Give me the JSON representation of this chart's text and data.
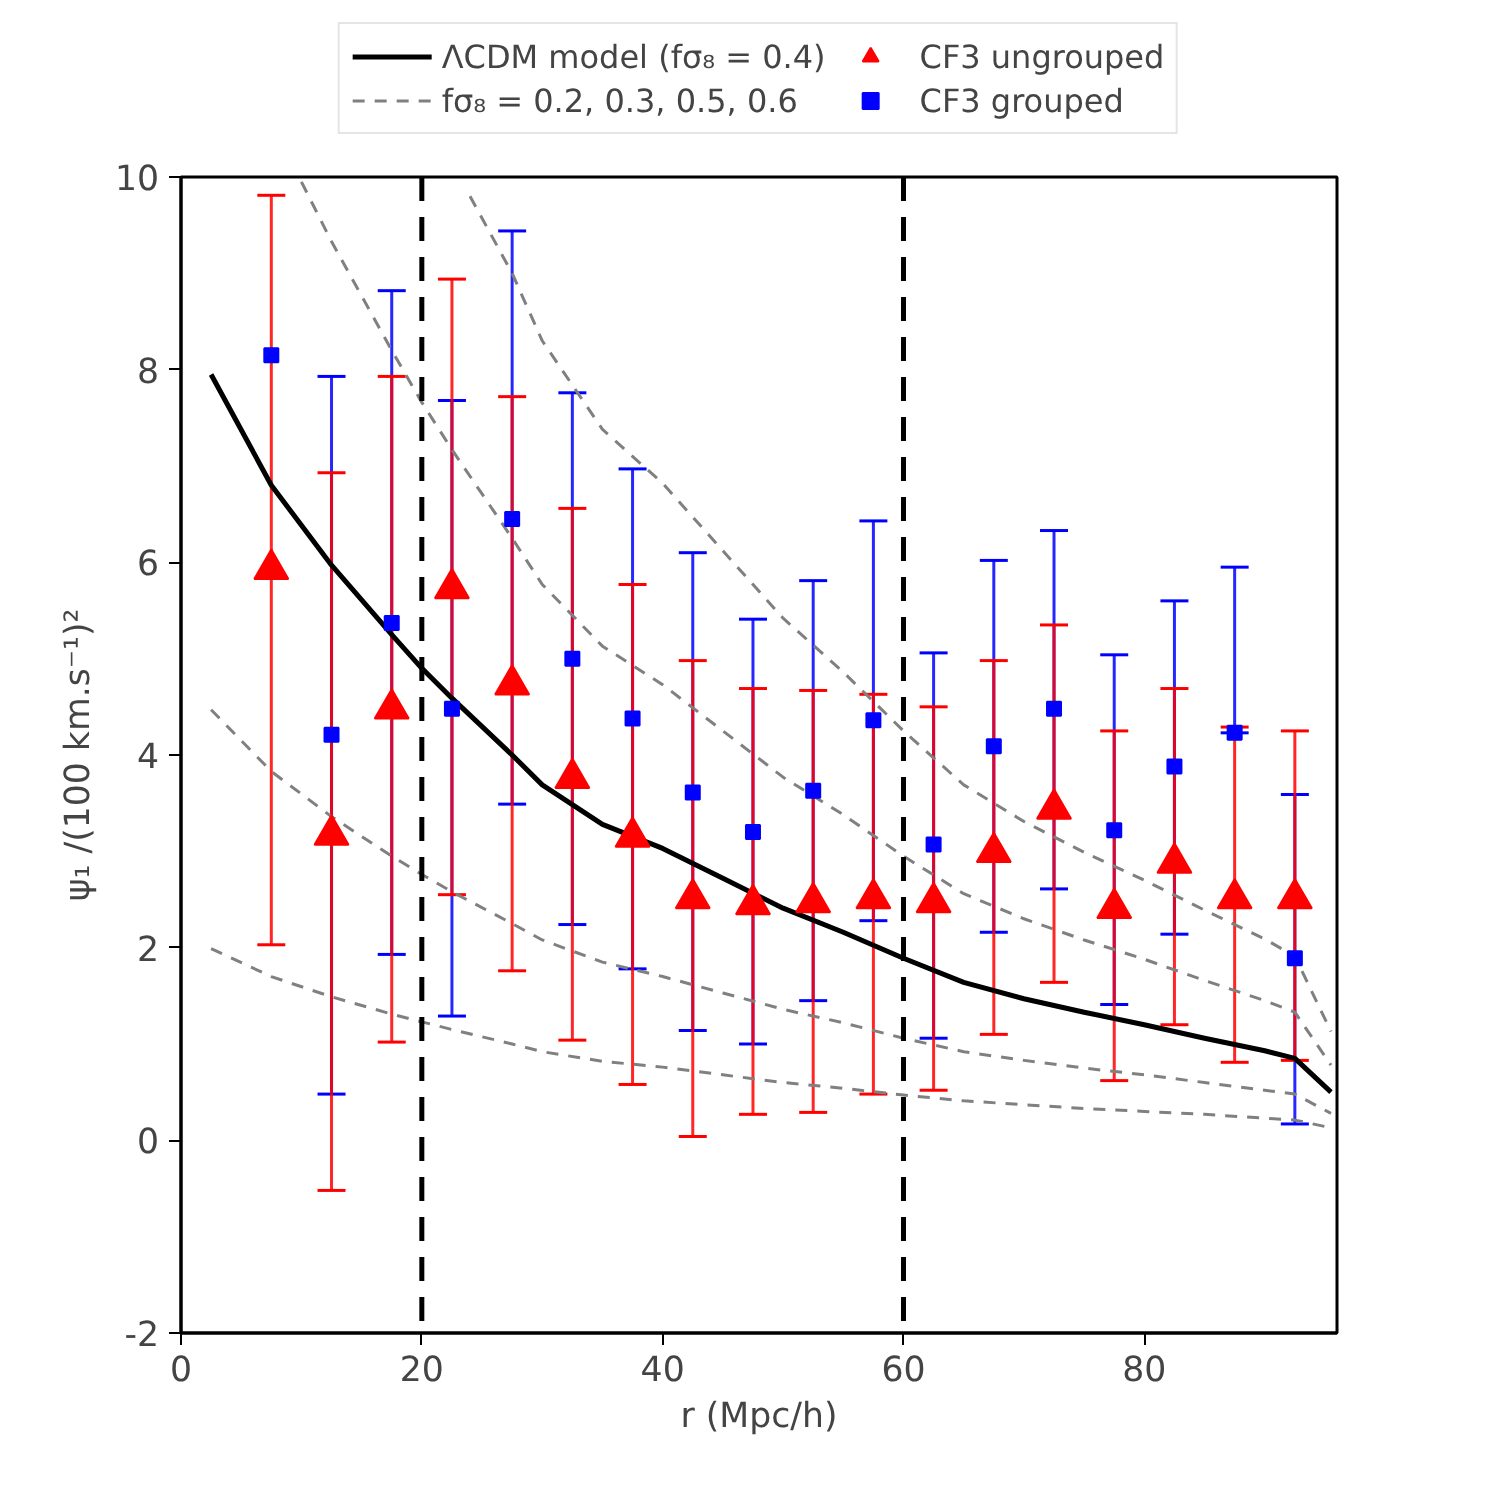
{
  "chart_data": {
    "type": "scatter",
    "xlabel": "r (Mpc/h)",
    "ylabel": "ψ₁ /(100 km.s⁻¹)²",
    "x": [
      7.5,
      12.5,
      17.5,
      22.5,
      27.5,
      32.5,
      37.5,
      42.5,
      47.5,
      52.5,
      57.5,
      62.5,
      67.5,
      72.5,
      77.5,
      82.5,
      87.5,
      92.5
    ],
    "xlim": [
      0,
      96
    ],
    "xticks": [
      0,
      20,
      40,
      60,
      80
    ],
    "ylim": [
      -2,
      10
    ],
    "yticks": [
      -2,
      0,
      2,
      4,
      6,
      8,
      10
    ],
    "grid": false,
    "legend": "top",
    "ref_lines": [
      {
        "axis": "x",
        "value": 20,
        "color": "#000000",
        "line_style": "dashed"
      },
      {
        "axis": "x",
        "value": 60,
        "color": "#000000",
        "line_style": "dashed"
      }
    ],
    "series": [
      {
        "type": "line",
        "name": "ΛCDM model (fσ₈ = 0.4)",
        "color": "#000000",
        "line_style": "solid",
        "x": [
          2.5,
          7.5,
          12.5,
          17.5,
          20,
          22.5,
          27.5,
          30,
          35,
          40,
          45,
          50,
          55,
          60,
          65,
          70,
          75,
          80,
          85,
          90,
          92.5,
          95.5
        ],
        "values": [
          7.95,
          6.8,
          5.97,
          5.25,
          4.9,
          4.59,
          4.0,
          3.69,
          3.28,
          3.03,
          2.72,
          2.41,
          2.16,
          1.89,
          1.64,
          1.47,
          1.33,
          1.2,
          1.06,
          0.93,
          0.85,
          0.5
        ]
      },
      {
        "type": "line",
        "name": "fσ₈ = 0.2, 0.3, 0.5, 0.6",
        "color": "#808080",
        "line_style": "dashed",
        "x": [
          2.5,
          7.5,
          12.5,
          17.5,
          20,
          22.5,
          27.5,
          30,
          35,
          40,
          45,
          50,
          55,
          60,
          65,
          70,
          75,
          80,
          85,
          90,
          92.5,
          95.5
        ],
        "values": [
          1.99,
          1.7,
          1.49,
          1.31,
          1.23,
          1.15,
          1.0,
          0.92,
          0.82,
          0.76,
          0.68,
          0.6,
          0.54,
          0.47,
          0.41,
          0.37,
          0.33,
          0.3,
          0.27,
          0.23,
          0.21,
          0.13
        ]
      },
      {
        "type": "line",
        "color": "#808080",
        "line_style": "dashed",
        "x": [
          2.5,
          7.5,
          12.5,
          17.5,
          20,
          22.5,
          27.5,
          30,
          35,
          40,
          45,
          50,
          55,
          60,
          65,
          70,
          75,
          80,
          85,
          90,
          92.5,
          95.5
        ],
        "values": [
          4.47,
          3.83,
          3.36,
          2.95,
          2.76,
          2.58,
          2.25,
          2.08,
          1.85,
          1.7,
          1.53,
          1.36,
          1.22,
          1.06,
          0.92,
          0.83,
          0.75,
          0.68,
          0.6,
          0.52,
          0.48,
          0.28
        ]
      },
      {
        "type": "line",
        "color": "#808080",
        "line_style": "dashed",
        "x": [
          10,
          12.5,
          17.5,
          20,
          22.5,
          27.5,
          30,
          35,
          40,
          45,
          50,
          55,
          60,
          65,
          70,
          75,
          80,
          85,
          90,
          92.5,
          95.5
        ],
        "values": [
          9.95,
          9.33,
          8.2,
          7.66,
          7.17,
          6.25,
          5.77,
          5.13,
          4.73,
          4.25,
          3.77,
          3.38,
          2.95,
          2.56,
          2.3,
          2.08,
          1.88,
          1.66,
          1.45,
          1.33,
          0.78
        ]
      },
      {
        "type": "line",
        "color": "#808080",
        "line_style": "dashed",
        "x": [
          24,
          27.5,
          30,
          35,
          40,
          45,
          50,
          55,
          60,
          65,
          70,
          75,
          80,
          85,
          90,
          92.5,
          95.5
        ],
        "values": [
          9.8,
          9.0,
          8.3,
          7.38,
          6.82,
          6.12,
          5.42,
          4.86,
          4.25,
          3.69,
          3.31,
          2.99,
          2.7,
          2.39,
          2.09,
          1.91,
          1.13
        ]
      },
      {
        "name": "CF3 ungrouped",
        "color": "#ff0000",
        "marker": "triangle",
        "values": [
          5.93,
          3.17,
          4.48,
          5.73,
          4.73,
          3.76,
          3.15,
          2.51,
          2.45,
          2.47,
          2.51,
          2.47,
          2.99,
          3.44,
          2.41,
          2.88,
          2.51,
          2.51
        ],
        "errors": [
          [
            2.03,
            9.81
          ],
          [
            -0.52,
            6.93
          ],
          [
            1.02,
            7.93
          ],
          [
            2.55,
            8.94
          ],
          [
            1.76,
            7.72
          ],
          [
            1.04,
            6.56
          ],
          [
            0.58,
            5.77
          ],
          [
            0.04,
            4.98
          ],
          [
            0.27,
            4.69
          ],
          [
            0.29,
            4.67
          ],
          [
            0.48,
            4.63
          ],
          [
            0.52,
            4.5
          ],
          [
            1.1,
            4.98
          ],
          [
            1.64,
            5.35
          ],
          [
            0.62,
            4.25
          ],
          [
            1.2,
            4.69
          ],
          [
            0.81,
            4.29
          ],
          [
            0.83,
            4.25
          ]
        ]
      },
      {
        "name": "CF3 grouped",
        "color": "#0000ff",
        "marker": "square",
        "values": [
          8.15,
          4.21,
          5.37,
          4.48,
          6.45,
          5.0,
          4.38,
          3.61,
          3.2,
          3.63,
          4.36,
          3.07,
          4.09,
          4.48,
          3.22,
          3.88,
          4.23,
          1.89
        ],
        "errors": [
          null,
          [
            0.48,
            7.93
          ],
          [
            1.93,
            8.82
          ],
          [
            1.29,
            7.68
          ],
          [
            3.49,
            9.44
          ],
          [
            2.24,
            7.76
          ],
          [
            1.78,
            6.97
          ],
          [
            1.14,
            6.1
          ],
          [
            1.0,
            5.41
          ],
          [
            1.45,
            5.81
          ],
          [
            2.28,
            6.43
          ],
          [
            1.06,
            5.06
          ],
          [
            2.16,
            6.02
          ],
          [
            2.61,
            6.33
          ],
          [
            1.41,
            5.04
          ],
          [
            2.14,
            5.6
          ],
          [
            4.23,
            5.95
          ],
          [
            0.17,
            3.59
          ]
        ]
      }
    ]
  }
}
